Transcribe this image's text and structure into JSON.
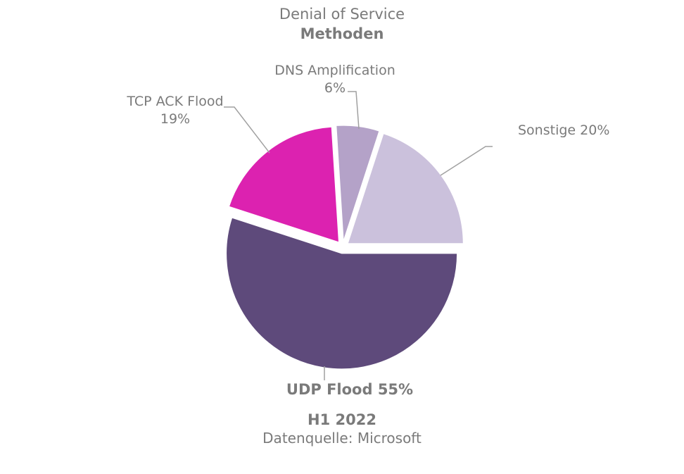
{
  "chart_data": {
    "type": "pie",
    "title": "Denial of Service",
    "subtitle": "Methoden",
    "period": "H1 2022",
    "source": "Datenquelle: Microsoft",
    "slices": [
      {
        "label": "UDP Flood",
        "value": 55,
        "value_label": "55%",
        "color": "#5e4a7b"
      },
      {
        "label": "TCP ACK Flood",
        "value": 19,
        "value_label": "19%",
        "color": "#dc22b0"
      },
      {
        "label": "DNS Amplification",
        "value": 6,
        "value_label": "6%",
        "color": "#b4a2c8"
      },
      {
        "label": "Sonstige",
        "value": 20,
        "value_label": "20%",
        "color": "#cbc1dc"
      }
    ]
  }
}
